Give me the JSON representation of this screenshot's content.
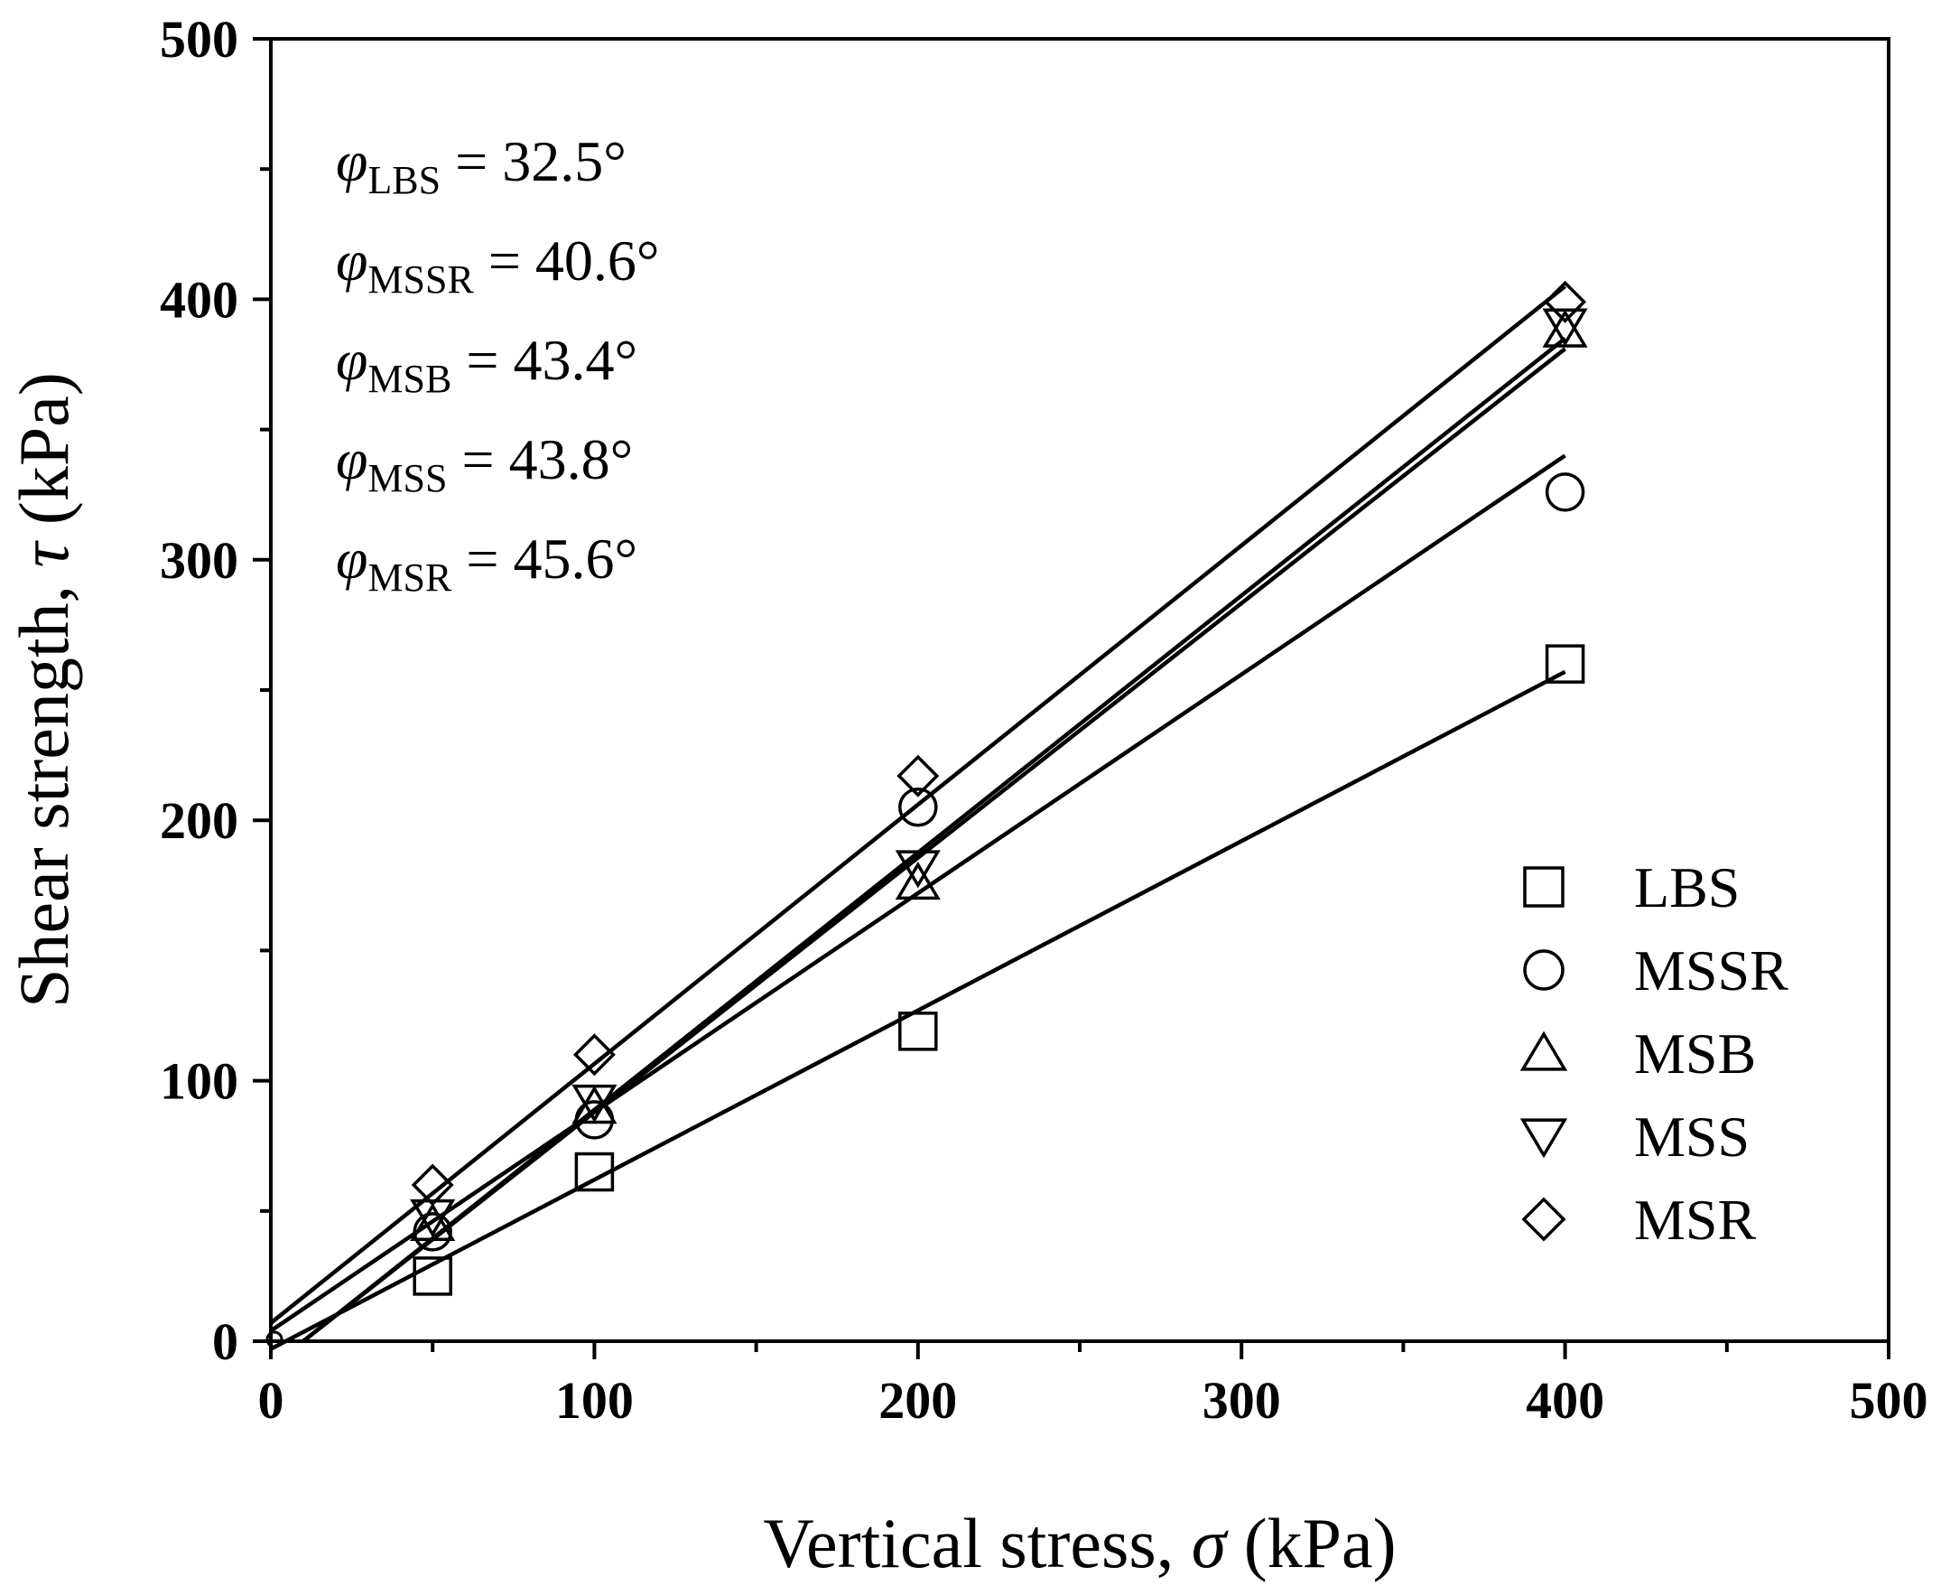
{
  "chart_data": {
    "type": "scatter",
    "xlabel_text": "Vertical stress, ",
    "xlabel_symbol": "σ",
    "xlabel_unit": " (kPa)",
    "ylabel_text": "Shear strength, ",
    "ylabel_symbol": "τ",
    "ylabel_unit": " (kPa)",
    "xlim": [
      0,
      500
    ],
    "ylim": [
      0,
      500
    ],
    "xticks": [
      0,
      100,
      200,
      300,
      400,
      500
    ],
    "yticks": [
      0,
      100,
      200,
      300,
      400,
      500
    ],
    "grid": false,
    "legend_position": "bottom-right",
    "series": [
      {
        "name": "LBS",
        "marker": "square",
        "x": [
          50,
          100,
          200,
          400
        ],
        "y": [
          25,
          65,
          119,
          260
        ],
        "fit": {
          "x": [
            0,
            400
          ],
          "y": [
            -3,
            257
          ]
        }
      },
      {
        "name": "MSSR",
        "marker": "circle",
        "x": [
          50,
          100,
          200,
          400
        ],
        "y": [
          42,
          85,
          205,
          326
        ],
        "fit": {
          "x": [
            0,
            400
          ],
          "y": [
            4,
            340
          ]
        }
      },
      {
        "name": "MSB",
        "marker": "triangle-up",
        "x": [
          50,
          100,
          200,
          400
        ],
        "y": [
          45,
          90,
          176,
          388
        ],
        "fit": {
          "x": [
            10,
            400
          ],
          "y": [
            0,
            381
          ]
        }
      },
      {
        "name": "MSS",
        "marker": "triangle-down",
        "x": [
          50,
          100,
          200,
          400
        ],
        "y": [
          48,
          92,
          182,
          390
        ],
        "fit": {
          "x": [
            10,
            400
          ],
          "y": [
            0,
            385
          ]
        }
      },
      {
        "name": "MSR",
        "marker": "diamond",
        "x": [
          50,
          100,
          200,
          400
        ],
        "y": [
          60,
          110,
          217,
          399
        ],
        "fit": {
          "x": [
            0,
            400
          ],
          "y": [
            7,
            405
          ]
        }
      }
    ],
    "annotations": [
      {
        "symbol": "φ",
        "sub": "LBS",
        "text": " = 32.5°"
      },
      {
        "symbol": "φ",
        "sub": "MSSR",
        "text": " = 40.6°"
      },
      {
        "symbol": "φ",
        "sub": "MSB",
        "text": " = 43.4°"
      },
      {
        "symbol": "φ",
        "sub": "MSS",
        "text": " = 43.8°"
      },
      {
        "symbol": "φ",
        "sub": "MSR",
        "text": " = 45.6°"
      }
    ]
  }
}
